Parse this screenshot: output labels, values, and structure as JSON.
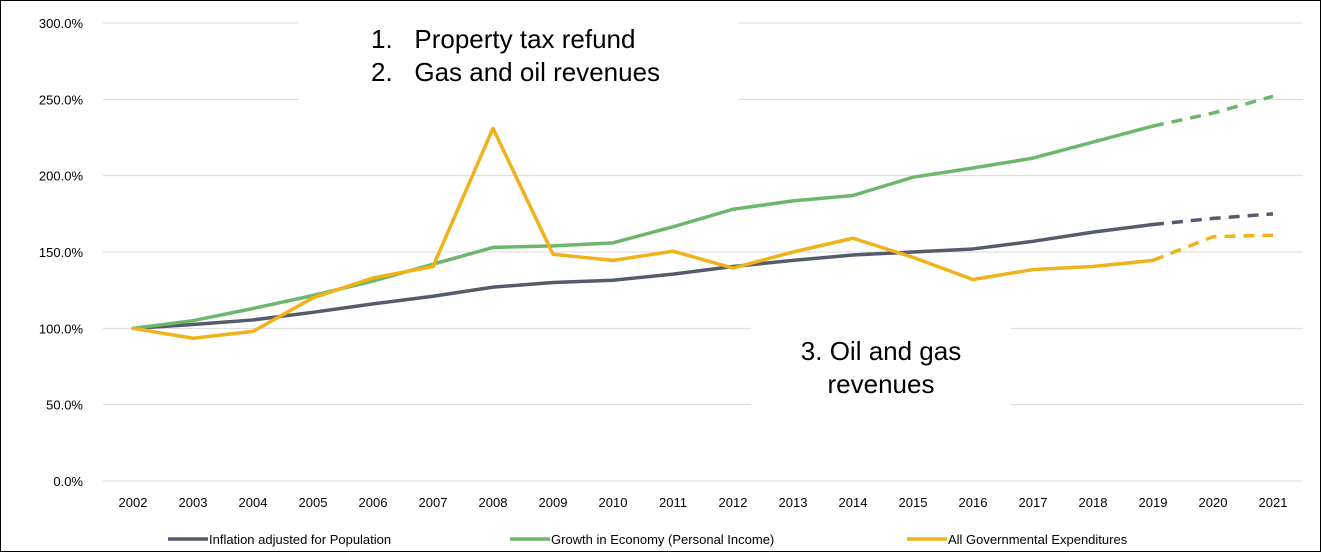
{
  "chart_data": {
    "type": "line",
    "title": "",
    "xlabel": "",
    "ylabel": "",
    "ylim": [
      0,
      300
    ],
    "yticks": [
      "0.0%",
      "50.0%",
      "100.0%",
      "150.0%",
      "200.0%",
      "250.0%",
      "300.0%"
    ],
    "x": [
      "2002",
      "2003",
      "2004",
      "2005",
      "2006",
      "2007",
      "2008",
      "2009",
      "2010",
      "2011",
      "2012",
      "2013",
      "2014",
      "2015",
      "2016",
      "2017",
      "2018",
      "2019",
      "2020",
      "2021"
    ],
    "grid": "horizontal",
    "legend_position": "bottom",
    "projection_starts_after": "2019",
    "series": [
      {
        "name": "Inflation adjusted for Population",
        "color": "#545b6c",
        "values": [
          100,
          102.5,
          105.5,
          110.5,
          116,
          121,
          127,
          130,
          131.5,
          135.5,
          140.5,
          144.5,
          148,
          150,
          152,
          157,
          163,
          168,
          172,
          175
        ]
      },
      {
        "name": "Growth in Economy (Personal Income)",
        "color": "#6db76d",
        "values": [
          100,
          105,
          113,
          121.5,
          131,
          142,
          153,
          154,
          156,
          166.5,
          178,
          183.5,
          187,
          199,
          205,
          211.5,
          222,
          232.5,
          241,
          252
        ]
      },
      {
        "name": "All Governmental Expenditures",
        "color": "#f0b21a",
        "values": [
          100,
          93.5,
          98,
          120,
          133,
          140.5,
          231,
          148.5,
          144.5,
          150.5,
          139.5,
          150,
          159,
          146.5,
          132,
          138.5,
          140.5,
          144.5,
          160,
          161
        ]
      }
    ],
    "annotations": [
      {
        "lines": [
          "1.   Property tax refund",
          "2.   Gas and oil revenues"
        ]
      },
      {
        "lines": [
          "3. Oil and gas",
          "revenues"
        ]
      }
    ]
  }
}
